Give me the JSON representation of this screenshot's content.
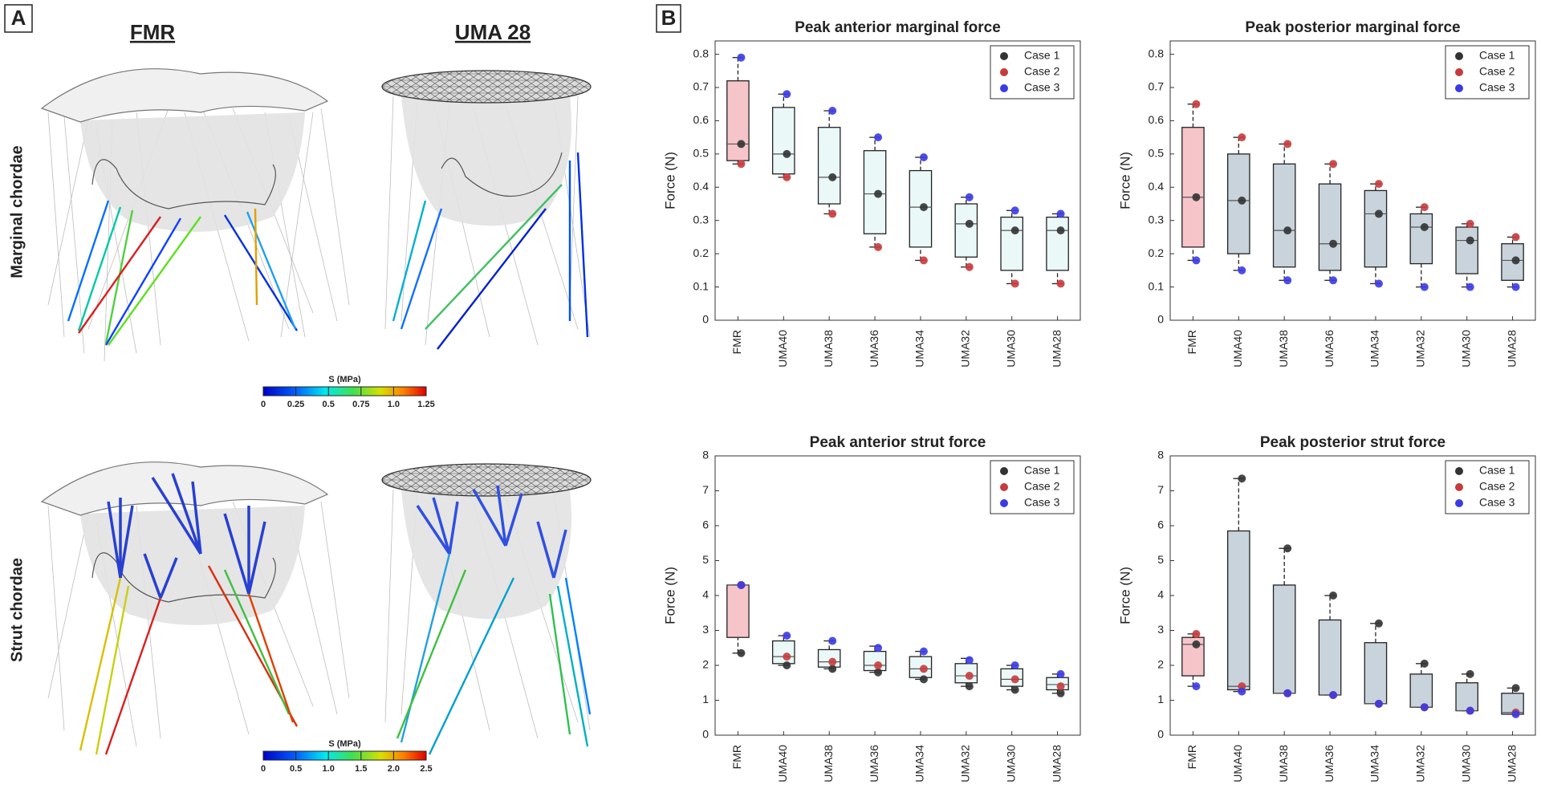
{
  "panel_a": {
    "label": "A",
    "columns": [
      "FMR",
      "UMA 28"
    ],
    "rows": [
      "Marginal chordae",
      "Strut chordae"
    ],
    "colorbars": [
      {
        "title": "S (MPa)",
        "lim": [
          0,
          1.25
        ],
        "ticks": [
          0,
          0.25,
          0.5,
          0.75,
          {
            "value": 1,
            "label": "1.0"
          },
          1.25
        ]
      },
      {
        "title": "S (MPa)",
        "lim": [
          0,
          2.5
        ],
        "ticks": [
          0,
          0.5,
          {
            "value": 1,
            "label": "1.0"
          },
          1.5,
          {
            "value": 2,
            "label": "2.0"
          },
          2.5
        ]
      }
    ]
  },
  "panel_b": {
    "label": "B"
  },
  "chart_data": [
    {
      "type": "box",
      "title": "Peak anterior marginal force",
      "y_label": "Force (N)",
      "categories": [
        "FMR",
        "UMA40",
        "UMA38",
        "UMA36",
        "UMA34",
        "UMA32",
        "UMA30",
        "UMA28"
      ],
      "box_colors": [
        "#f6c5ca",
        "#ebf8f8",
        "#ebf8f8",
        "#ebf8f8",
        "#ebf8f8",
        "#ebf8f8",
        "#ebf8f8",
        "#ebf8f8"
      ],
      "boxes": {
        "whisker_low": [
          0.47,
          0.43,
          0.32,
          0.22,
          0.18,
          0.16,
          0.11,
          0.11
        ],
        "q1": [
          0.48,
          0.44,
          0.35,
          0.26,
          0.22,
          0.19,
          0.15,
          0.15
        ],
        "median": [
          0.53,
          0.5,
          0.43,
          0.38,
          0.34,
          0.29,
          0.27,
          0.27
        ],
        "q3": [
          0.72,
          0.64,
          0.58,
          0.51,
          0.45,
          0.35,
          0.31,
          0.31
        ],
        "whisker_high": [
          0.79,
          0.68,
          0.63,
          0.55,
          0.49,
          0.37,
          0.33,
          0.32
        ]
      },
      "series": [
        {
          "name": "Case 1",
          "color": "#333333",
          "values": [
            0.53,
            0.5,
            0.43,
            0.38,
            0.34,
            0.29,
            0.27,
            0.27
          ]
        },
        {
          "name": "Case 2",
          "color": "#c63b3d",
          "values": [
            0.47,
            0.43,
            0.32,
            0.22,
            0.18,
            0.16,
            0.11,
            0.11
          ]
        },
        {
          "name": "Case 3",
          "color": "#3b3be3",
          "values": [
            0.79,
            0.68,
            0.63,
            0.55,
            0.49,
            0.37,
            0.33,
            0.32
          ]
        }
      ],
      "ylim": [
        0,
        0.84
      ],
      "yticks": [
        0,
        0.1,
        0.2,
        0.3,
        0.4,
        0.5,
        0.6,
        0.7,
        0.8
      ],
      "legend": "northeast",
      "grid": false
    },
    {
      "type": "box",
      "title": "Peak posterior marginal force",
      "y_label": "Force (N)",
      "categories": [
        "FMR",
        "UMA40",
        "UMA38",
        "UMA36",
        "UMA34",
        "UMA32",
        "UMA30",
        "UMA28"
      ],
      "box_colors": [
        "#f6c5ca",
        "#c9d3dc",
        "#c9d3dc",
        "#c9d3dc",
        "#c9d3dc",
        "#c9d3dc",
        "#c9d3dc",
        "#c9d3dc"
      ],
      "boxes": {
        "whisker_low": [
          0.18,
          0.15,
          0.12,
          0.12,
          0.11,
          0.1,
          0.1,
          0.1
        ],
        "q1": [
          0.22,
          0.2,
          0.16,
          0.15,
          0.16,
          0.17,
          0.14,
          0.12
        ],
        "median": [
          0.37,
          0.36,
          0.27,
          0.23,
          0.32,
          0.28,
          0.24,
          0.18
        ],
        "q3": [
          0.58,
          0.5,
          0.47,
          0.41,
          0.39,
          0.32,
          0.28,
          0.23
        ],
        "whisker_high": [
          0.65,
          0.55,
          0.53,
          0.47,
          0.41,
          0.34,
          0.29,
          0.25
        ]
      },
      "series": [
        {
          "name": "Case 1",
          "color": "#333333",
          "values": [
            0.37,
            0.36,
            0.27,
            0.23,
            0.32,
            0.28,
            0.24,
            0.18
          ]
        },
        {
          "name": "Case 2",
          "color": "#c63b3d",
          "values": [
            0.65,
            0.55,
            0.53,
            0.47,
            0.41,
            0.34,
            0.29,
            0.25
          ]
        },
        {
          "name": "Case 3",
          "color": "#3b3be3",
          "values": [
            0.18,
            0.15,
            0.12,
            0.12,
            0.11,
            0.1,
            0.1,
            0.1
          ]
        }
      ],
      "ylim": [
        0,
        0.84
      ],
      "yticks": [
        0,
        0.1,
        0.2,
        0.3,
        0.4,
        0.5,
        0.6,
        0.7,
        0.8
      ],
      "legend": "northeast",
      "grid": false
    },
    {
      "type": "box",
      "title": "Peak anterior strut force",
      "y_label": "Force (N)",
      "categories": [
        "FMR",
        "UMA40",
        "UMA38",
        "UMA36",
        "UMA34",
        "UMA32",
        "UMA30",
        "UMA28"
      ],
      "box_colors": [
        "#f6c5ca",
        "#ebf8f8",
        "#ebf8f8",
        "#ebf8f8",
        "#ebf8f8",
        "#ebf8f8",
        "#ebf8f8",
        "#ebf8f8"
      ],
      "boxes": {
        "whisker_low": [
          2.35,
          2.0,
          1.9,
          1.8,
          1.6,
          1.4,
          1.3,
          1.2
        ],
        "q1": [
          2.8,
          2.05,
          1.95,
          1.85,
          1.65,
          1.5,
          1.4,
          1.3
        ],
        "median": [
          4.3,
          2.25,
          2.1,
          2.0,
          1.9,
          1.7,
          1.6,
          1.45
        ],
        "q3": [
          4.3,
          2.7,
          2.45,
          2.4,
          2.25,
          2.05,
          1.9,
          1.65
        ],
        "whisker_high": [
          4.3,
          2.85,
          2.7,
          2.55,
          2.4,
          2.2,
          2.0,
          1.75
        ]
      },
      "series": [
        {
          "name": "Case 1",
          "color": "#333333",
          "values": [
            2.35,
            2.0,
            1.9,
            1.8,
            1.6,
            1.4,
            1.3,
            1.2
          ]
        },
        {
          "name": "Case 2",
          "color": "#c63b3d",
          "values": [
            4.3,
            2.25,
            2.1,
            2.0,
            1.9,
            1.7,
            1.6,
            1.4
          ]
        },
        {
          "name": "Case 3",
          "color": "#3b3be3",
          "values": [
            4.3,
            2.85,
            2.7,
            2.5,
            2.4,
            2.15,
            2.0,
            1.75
          ]
        }
      ],
      "ylim": [
        0,
        8
      ],
      "yticks": [
        0,
        1,
        2,
        3,
        4,
        5,
        6,
        7,
        8
      ],
      "legend": "northeast",
      "grid": false
    },
    {
      "type": "box",
      "title": "Peak posterior strut force",
      "y_label": "Force (N)",
      "categories": [
        "FMR",
        "UMA40",
        "UMA38",
        "UMA36",
        "UMA34",
        "UMA32",
        "UMA30",
        "UMA28"
      ],
      "box_colors": [
        "#f6c5ca",
        "#c9d3dc",
        "#c9d3dc",
        "#c9d3dc",
        "#c9d3dc",
        "#c9d3dc",
        "#c9d3dc",
        "#c9d3dc"
      ],
      "boxes": {
        "whisker_low": [
          1.4,
          1.25,
          1.2,
          1.15,
          0.9,
          0.8,
          0.7,
          0.6
        ],
        "q1": [
          1.7,
          1.3,
          1.2,
          1.15,
          0.9,
          0.8,
          0.7,
          0.6
        ],
        "median": [
          2.6,
          1.4,
          1.2,
          1.15,
          0.9,
          0.8,
          0.7,
          0.65
        ],
        "q3": [
          2.8,
          5.85,
          4.3,
          3.3,
          2.65,
          1.75,
          1.5,
          1.2
        ],
        "whisker_high": [
          2.9,
          7.35,
          5.35,
          4.0,
          3.2,
          2.05,
          1.75,
          1.35
        ]
      },
      "series": [
        {
          "name": "Case 1",
          "color": "#333333",
          "values": [
            2.6,
            7.35,
            5.35,
            4.0,
            3.2,
            2.05,
            1.75,
            1.35
          ]
        },
        {
          "name": "Case 2",
          "color": "#c63b3d",
          "values": [
            2.9,
            1.4,
            1.2,
            1.15,
            0.9,
            0.8,
            0.7,
            0.65
          ]
        },
        {
          "name": "Case 3",
          "color": "#3b3be3",
          "values": [
            1.4,
            1.25,
            1.2,
            1.15,
            0.9,
            0.8,
            0.7,
            0.6
          ]
        }
      ],
      "ylim": [
        0,
        8
      ],
      "yticks": [
        0,
        1,
        2,
        3,
        4,
        5,
        6,
        7,
        8
      ],
      "legend": "northeast",
      "grid": false
    }
  ]
}
